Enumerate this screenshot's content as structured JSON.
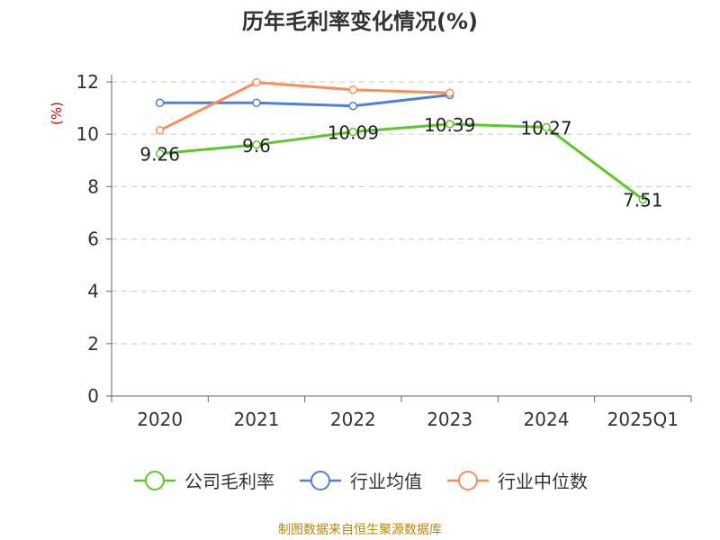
{
  "chart_data": {
    "type": "line",
    "title": "历年毛利率变化情况(%)",
    "ylabel": "(%)",
    "xlabel": "",
    "categories": [
      "2020",
      "2021",
      "2022",
      "2023",
      "2024",
      "2025Q1"
    ],
    "ylim": [
      0,
      12
    ],
    "yticks": [
      0,
      2,
      4,
      6,
      8,
      10,
      12
    ],
    "grid": true,
    "legend_position": "bottom",
    "series": [
      {
        "name": "公司毛利率",
        "color": "#5ec52b",
        "values": [
          9.26,
          9.6,
          10.09,
          10.39,
          10.27,
          7.51
        ],
        "labels": [
          "9.26",
          "9.6",
          "10.09",
          "10.39",
          "10.27",
          "7.51"
        ]
      },
      {
        "name": "行业均值",
        "color": "#4e7fdc",
        "values": [
          11.2,
          11.2,
          11.08,
          11.5,
          null,
          null
        ]
      },
      {
        "name": "行业中位数",
        "color": "#f68f5a",
        "values": [
          10.15,
          11.98,
          11.7,
          11.58,
          null,
          null
        ]
      }
    ]
  },
  "source_note": "制图数据来自恒生聚源数据库"
}
